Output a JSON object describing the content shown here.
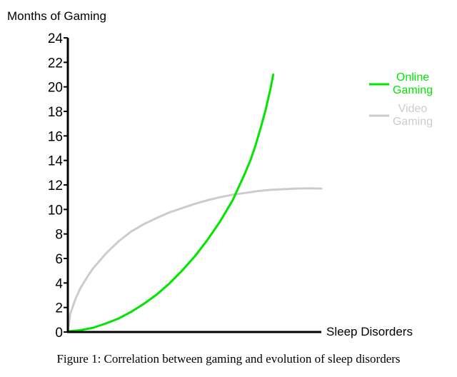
{
  "chart_data": {
    "type": "line",
    "ylabel": "Months of Gaming",
    "xlabel": "Sleep Disorders",
    "ylim": [
      0,
      24
    ],
    "xlim": [
      0,
      1
    ],
    "yticks": [
      0,
      2,
      4,
      6,
      8,
      10,
      12,
      14,
      16,
      18,
      20,
      22,
      24
    ],
    "legend_position": "top-right",
    "grid": false,
    "series": [
      {
        "name": "Online Gaming",
        "color": "#00e600",
        "x": [
          0,
          0.05,
          0.1,
          0.15,
          0.2,
          0.25,
          0.3,
          0.35,
          0.4,
          0.45,
          0.5,
          0.55,
          0.6,
          0.65,
          0.7,
          0.72,
          0.74,
          0.76,
          0.78,
          0.8,
          0.81
        ],
        "y": [
          0.05,
          0.15,
          0.35,
          0.7,
          1.1,
          1.65,
          2.3,
          3.05,
          3.95,
          5.0,
          6.15,
          7.5,
          9.0,
          10.75,
          13.0,
          14.0,
          15.2,
          16.6,
          18.1,
          19.9,
          21.0
        ]
      },
      {
        "name": "Video Gaming",
        "color": "#cccccc",
        "x": [
          0,
          0.01,
          0.03,
          0.05,
          0.08,
          0.1,
          0.15,
          0.2,
          0.25,
          0.3,
          0.35,
          0.4,
          0.45,
          0.5,
          0.55,
          0.6,
          0.65,
          0.7,
          0.75,
          0.8,
          0.85,
          0.9,
          0.95,
          1.0
        ],
        "y": [
          0,
          1.5,
          2.7,
          3.6,
          4.6,
          5.2,
          6.4,
          7.4,
          8.2,
          8.8,
          9.3,
          9.75,
          10.1,
          10.45,
          10.75,
          11.0,
          11.2,
          11.35,
          11.5,
          11.6,
          11.65,
          11.7,
          11.72,
          11.7
        ]
      }
    ]
  },
  "caption": "Figure 1: Correlation between gaming and evolution of sleep disorders"
}
